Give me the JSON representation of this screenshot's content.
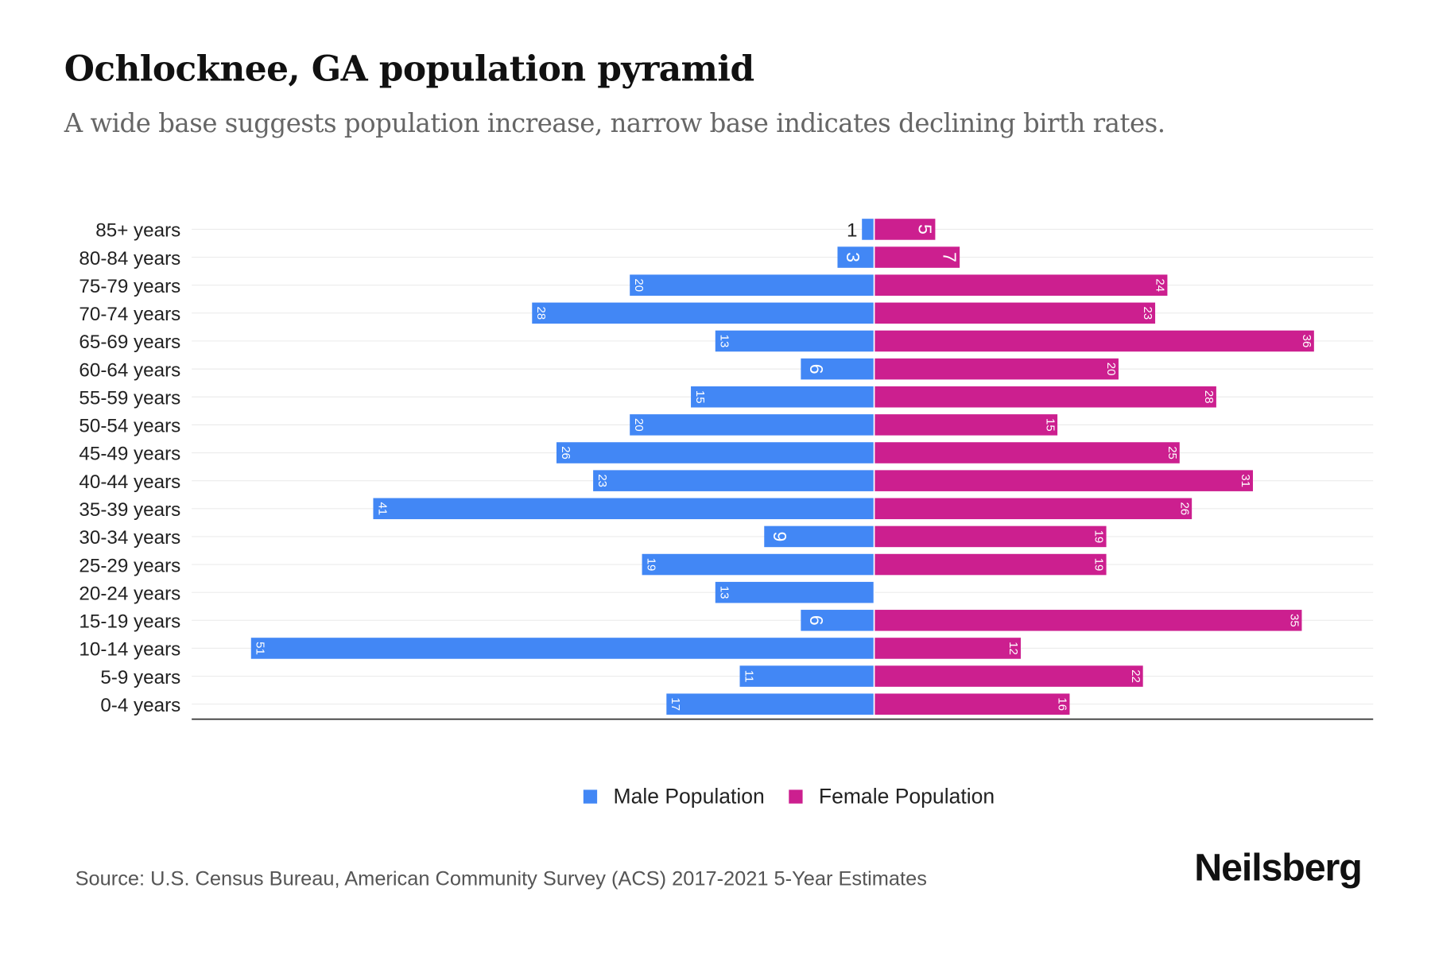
{
  "title": "Ochlocknee, GA population pyramid",
  "subtitle": "A wide base suggests population increase, narrow base indicates declining birth rates.",
  "source": "Source: U.S. Census Bureau, American Community Survey (ACS) 2017-2021 5-Year Estimates",
  "logo": "Neilsberg",
  "colors": {
    "male": "#4287f5",
    "female": "#cc1f8f"
  },
  "chart_data": {
    "type": "bar",
    "orientation": "horizontal-pyramid",
    "title": "Ochlocknee, GA population pyramid",
    "categories": [
      "85+ years",
      "80-84 years",
      "75-79 years",
      "70-74 years",
      "65-69 years",
      "60-64 years",
      "55-59 years",
      "50-54 years",
      "45-49 years",
      "40-44 years",
      "35-39 years",
      "30-34 years",
      "25-29 years",
      "20-24 years",
      "15-19 years",
      "10-14 years",
      "5-9 years",
      "0-4 years"
    ],
    "series": [
      {
        "name": "Male Population",
        "values": [
          1,
          3,
          20,
          28,
          13,
          6,
          15,
          20,
          26,
          23,
          41,
          9,
          19,
          13,
          6,
          51,
          11,
          17
        ]
      },
      {
        "name": "Female Population",
        "values": [
          5,
          7,
          24,
          23,
          36,
          20,
          28,
          15,
          25,
          31,
          26,
          19,
          19,
          0,
          35,
          12,
          22,
          16
        ]
      }
    ],
    "legend": "bottom-center",
    "grid": true
  }
}
